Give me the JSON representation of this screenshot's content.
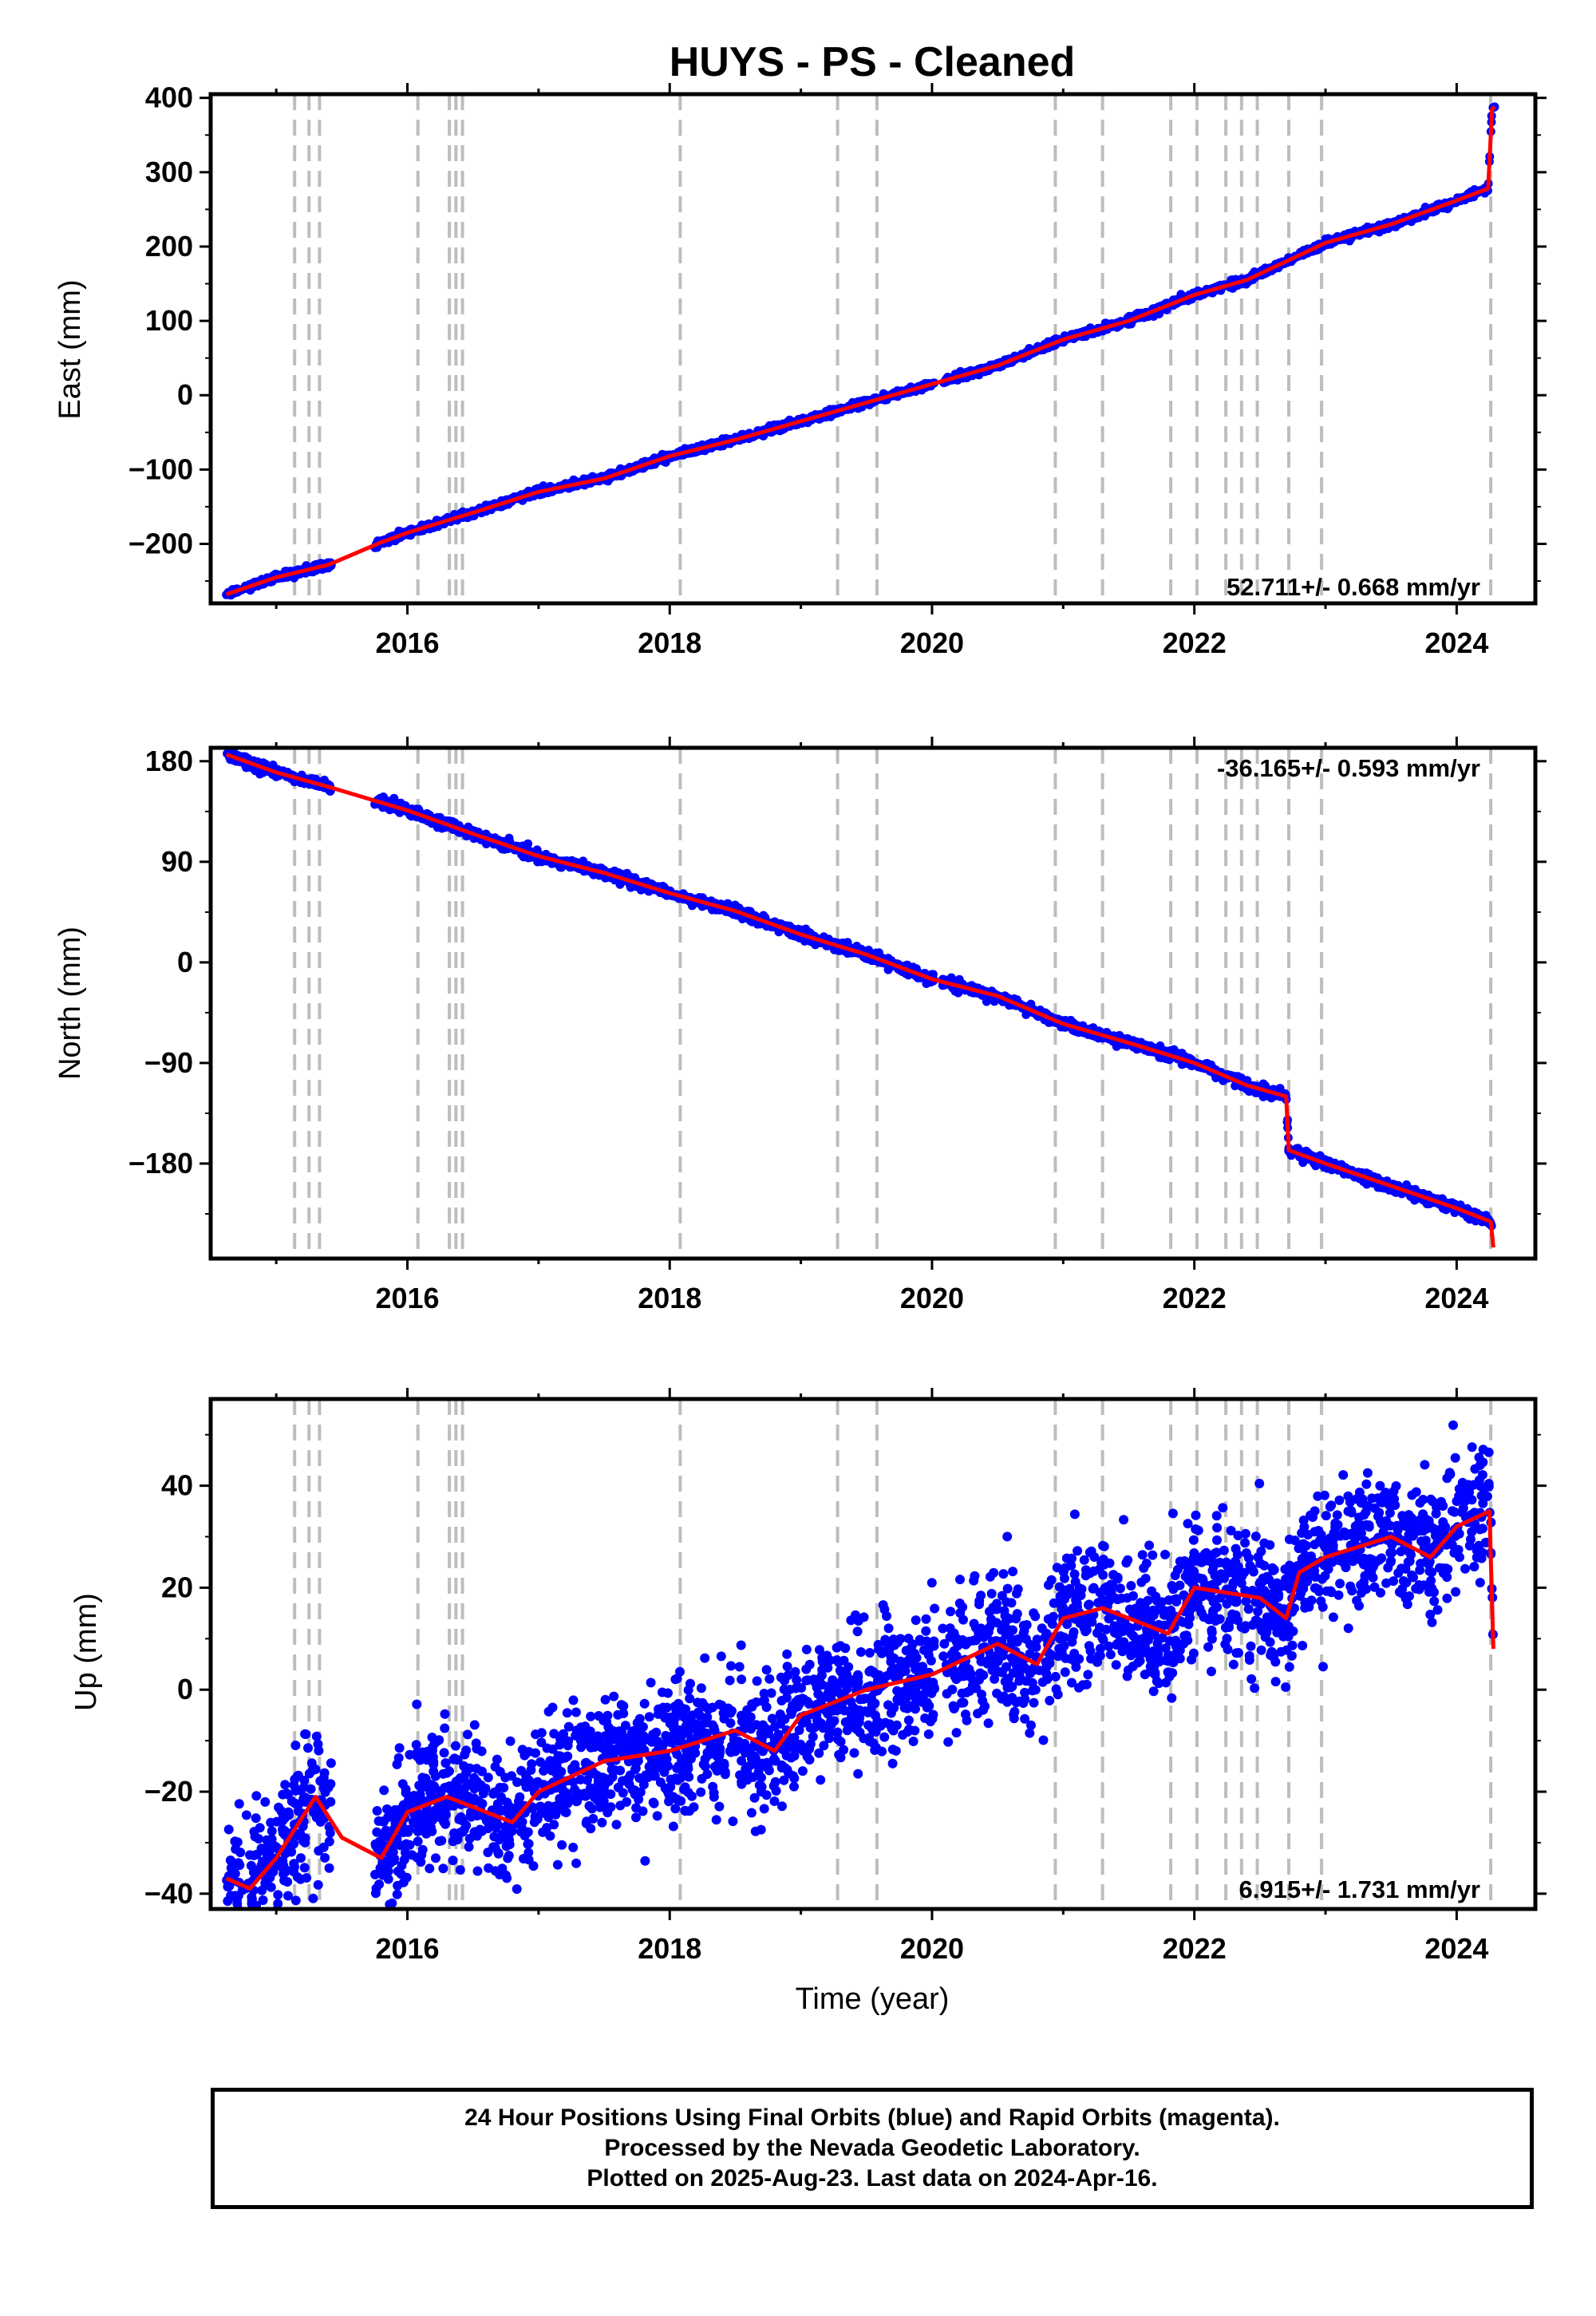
{
  "title": "HUYS  - PS - Cleaned",
  "colors": {
    "data": "#0000ff",
    "model": "#ff0000",
    "steps": "#bdbdbd",
    "frame": "#000000"
  },
  "chart_data": [
    {
      "type": "scatter",
      "ylabel": "East (mm)",
      "xlabel": "",
      "xlim": [
        2014.5,
        2024.6
      ],
      "ylim": [
        -280,
        405
      ],
      "x_ticks": [
        2016,
        2018,
        2020,
        2022,
        2024
      ],
      "y_ticks": [
        -200,
        -100,
        0,
        100,
        200,
        300,
        400
      ],
      "rate_label": "52.711+/- 0.668 mm/yr",
      "rate_position": "bottom-right",
      "series": [
        {
          "values_x": [
            2014.62,
            2015.0,
            2015.4,
            2015.8,
            2016.0,
            2016.5,
            2017.0,
            2017.5,
            2018.0,
            2018.5,
            2019.0,
            2019.5,
            2020.0,
            2020.5,
            2021.0,
            2021.5,
            2022.0,
            2022.4,
            2022.7,
            2023.0,
            2023.5,
            2024.0,
            2024.24,
            2024.27,
            2024.29
          ],
          "values_y": [
            -268,
            -245,
            -228,
            -198,
            -185,
            -158,
            -130,
            -112,
            -82,
            -60,
            -35,
            -10,
            15,
            40,
            75,
            100,
            135,
            155,
            180,
            205,
            230,
            262,
            278,
            385,
            388
          ]
        }
      ]
    },
    {
      "type": "scatter",
      "ylabel": "North (mm)",
      "xlabel": "",
      "xlim": [
        2014.5,
        2024.6
      ],
      "ylim": [
        -265,
        192
      ],
      "x_ticks": [
        2016,
        2018,
        2020,
        2022,
        2024
      ],
      "y_ticks": [
        -180,
        -90,
        0,
        90,
        180
      ],
      "y_tick_labels": [
        "−180",
        "−90",
        "0",
        "90",
        "180"
      ],
      "rate_label": "-36.165+/- 0.593 mm/yr",
      "rate_position": "top-right",
      "series": [
        {
          "values_x": [
            2014.62,
            2015.0,
            2015.4,
            2016.0,
            2016.5,
            2017.0,
            2017.5,
            2018.0,
            2018.5,
            2019.0,
            2019.5,
            2020.0,
            2020.5,
            2021.0,
            2021.5,
            2022.0,
            2022.4,
            2022.7,
            2022.72,
            2023.0,
            2023.5,
            2024.0,
            2024.26,
            2024.28
          ],
          "values_y": [
            186,
            170,
            157,
            136,
            115,
            95,
            80,
            62,
            46,
            25,
            7,
            -15,
            -30,
            -55,
            -72,
            -90,
            -110,
            -120,
            -168,
            -180,
            -200,
            -220,
            -232,
            -255
          ]
        }
      ]
    },
    {
      "type": "scatter",
      "ylabel": "Up (mm)",
      "xlabel": "Time (year)",
      "xlim": [
        2014.5,
        2024.6
      ],
      "ylim": [
        -43,
        57
      ],
      "x_ticks": [
        2016,
        2018,
        2020,
        2022,
        2024
      ],
      "y_ticks": [
        -40,
        -20,
        0,
        20,
        40
      ],
      "y_tick_labels": [
        "−40",
        "−20",
        "0",
        "20",
        "40"
      ],
      "rate_label": "6.915+/- 1.731 mm/yr",
      "rate_position": "bottom-right",
      "series": [
        {
          "values_x": [
            2014.62,
            2014.8,
            2015.0,
            2015.2,
            2015.3,
            2015.5,
            2015.8,
            2016.0,
            2016.3,
            2016.5,
            2016.8,
            2017.0,
            2017.5,
            2018.0,
            2018.5,
            2018.8,
            2019.0,
            2019.5,
            2020.0,
            2020.5,
            2020.8,
            2021.0,
            2021.3,
            2021.8,
            2022.0,
            2022.5,
            2022.7,
            2022.8,
            2023.0,
            2023.5,
            2023.8,
            2024.0,
            2024.25,
            2024.28
          ],
          "values_y": [
            -37,
            -39,
            -33,
            -25,
            -21,
            -29,
            -33,
            -24,
            -21,
            -23,
            -26,
            -20,
            -14,
            -12,
            -8,
            -12,
            -5,
            0,
            3,
            9,
            5,
            14,
            16,
            11,
            20,
            18,
            14,
            23,
            26,
            30,
            26,
            32,
            35,
            8
          ]
        }
      ]
    }
  ],
  "steps_x": [
    2015.14,
    2015.25,
    2015.33,
    2016.08,
    2016.32,
    2016.37,
    2016.42,
    2018.08,
    2019.28,
    2019.58,
    2020.94,
    2021.3,
    2021.82,
    2022.02,
    2022.24,
    2022.36,
    2022.48,
    2022.72,
    2022.97,
    2024.26
  ],
  "caption": {
    "line1": "24 Hour Positions Using Final Orbits (blue) and Rapid Orbits (magenta).",
    "line2": "Processed by the Nevada Geodetic Laboratory.",
    "line3": "Plotted on 2025-Aug-23. Last data on 2024-Apr-16."
  }
}
